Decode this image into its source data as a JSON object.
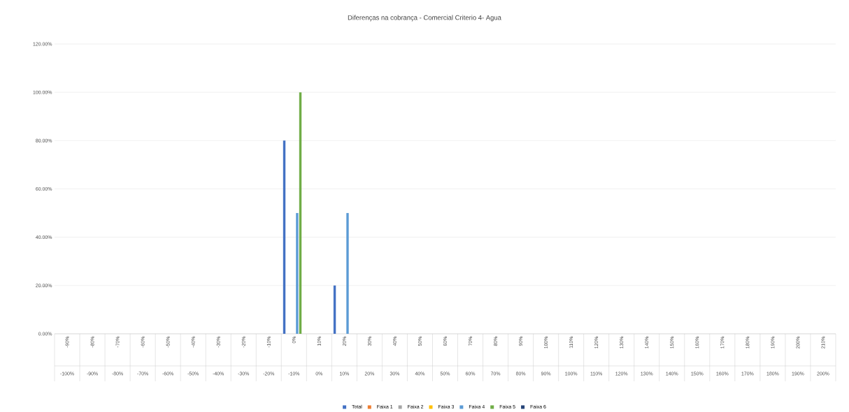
{
  "chart_data": {
    "type": "bar",
    "title": "Diferenças na cobrança - Comercial Criterio 4- Agua",
    "categories": [
      "-90%",
      "-80%",
      "-70%",
      "-60%",
      "-50%",
      "-40%",
      "-30%",
      "-20%",
      "-10%",
      "0%",
      "10%",
      "20%",
      "30%",
      "40%",
      "50%",
      "60%",
      "70%",
      "80%",
      "90%",
      "100%",
      "110%",
      "120%",
      "130%",
      "140%",
      "150%",
      "160%",
      "170%",
      "180%",
      "190%",
      "200%",
      "210%"
    ],
    "annotations": [
      "-100%",
      "-90%",
      "-80%",
      "-70%",
      "-60%",
      "-50%",
      "-40%",
      "-30%",
      "-20%",
      "-10%",
      "0%",
      "10%",
      "20%",
      "30%",
      "40%",
      "50%",
      "60%",
      "70%",
      "80%",
      "90%",
      "100%",
      "110%",
      "120%",
      "130%",
      "140%",
      "150%",
      "160%",
      "170%",
      "180%",
      "190%",
      "200%"
    ],
    "series": [
      {
        "name": "Total",
        "color": "#4472c4",
        "values": [
          0,
          0,
          0,
          0,
          0,
          0,
          0,
          0,
          0,
          80,
          0,
          20,
          0,
          0,
          0,
          0,
          0,
          0,
          0,
          0,
          0,
          0,
          0,
          0,
          0,
          0,
          0,
          0,
          0,
          0,
          0
        ]
      },
      {
        "name": "Faixa 1",
        "color": "#ed7d31",
        "values": [
          0,
          0,
          0,
          0,
          0,
          0,
          0,
          0,
          0,
          0,
          0,
          0,
          0,
          0,
          0,
          0,
          0,
          0,
          0,
          0,
          0,
          0,
          0,
          0,
          0,
          0,
          0,
          0,
          0,
          0,
          0
        ]
      },
      {
        "name": "Faixa 2",
        "color": "#a5a5a5",
        "values": [
          0,
          0,
          0,
          0,
          0,
          0,
          0,
          0,
          0,
          0,
          0,
          0,
          0,
          0,
          0,
          0,
          0,
          0,
          0,
          0,
          0,
          0,
          0,
          0,
          0,
          0,
          0,
          0,
          0,
          0,
          0
        ]
      },
      {
        "name": "Faixa 3",
        "color": "#ffc000",
        "values": [
          0,
          0,
          0,
          0,
          0,
          0,
          0,
          0,
          0,
          0,
          0,
          0,
          0,
          0,
          0,
          0,
          0,
          0,
          0,
          0,
          0,
          0,
          0,
          0,
          0,
          0,
          0,
          0,
          0,
          0,
          0
        ]
      },
      {
        "name": "Faixa 4",
        "color": "#5b9bd5",
        "values": [
          0,
          0,
          0,
          0,
          0,
          0,
          0,
          0,
          0,
          50,
          0,
          50,
          0,
          0,
          0,
          0,
          0,
          0,
          0,
          0,
          0,
          0,
          0,
          0,
          0,
          0,
          0,
          0,
          0,
          0,
          0
        ]
      },
      {
        "name": "Faixa 5",
        "color": "#70ad47",
        "values": [
          0,
          0,
          0,
          0,
          0,
          0,
          0,
          0,
          0,
          100,
          0,
          0,
          0,
          0,
          0,
          0,
          0,
          0,
          0,
          0,
          0,
          0,
          0,
          0,
          0,
          0,
          0,
          0,
          0,
          0,
          0
        ]
      },
      {
        "name": "Faixa 6",
        "color": "#264478",
        "values": [
          0,
          0,
          0,
          0,
          0,
          0,
          0,
          0,
          0,
          0,
          0,
          0,
          0,
          0,
          0,
          0,
          0,
          0,
          0,
          0,
          0,
          0,
          0,
          0,
          0,
          0,
          0,
          0,
          0,
          0,
          0
        ]
      }
    ],
    "ylim": [
      0,
      120
    ],
    "yticks": [
      {
        "value": 0,
        "label": "0.00%"
      },
      {
        "value": 20,
        "label": "20.00%"
      },
      {
        "value": 40,
        "label": "40.00%"
      },
      {
        "value": 60,
        "label": "60.00%"
      },
      {
        "value": 80,
        "label": "80.00%"
      },
      {
        "value": 100,
        "label": "100.00%"
      },
      {
        "value": 120,
        "label": "120.00%"
      }
    ],
    "grid": "y",
    "legend": "bottom"
  }
}
